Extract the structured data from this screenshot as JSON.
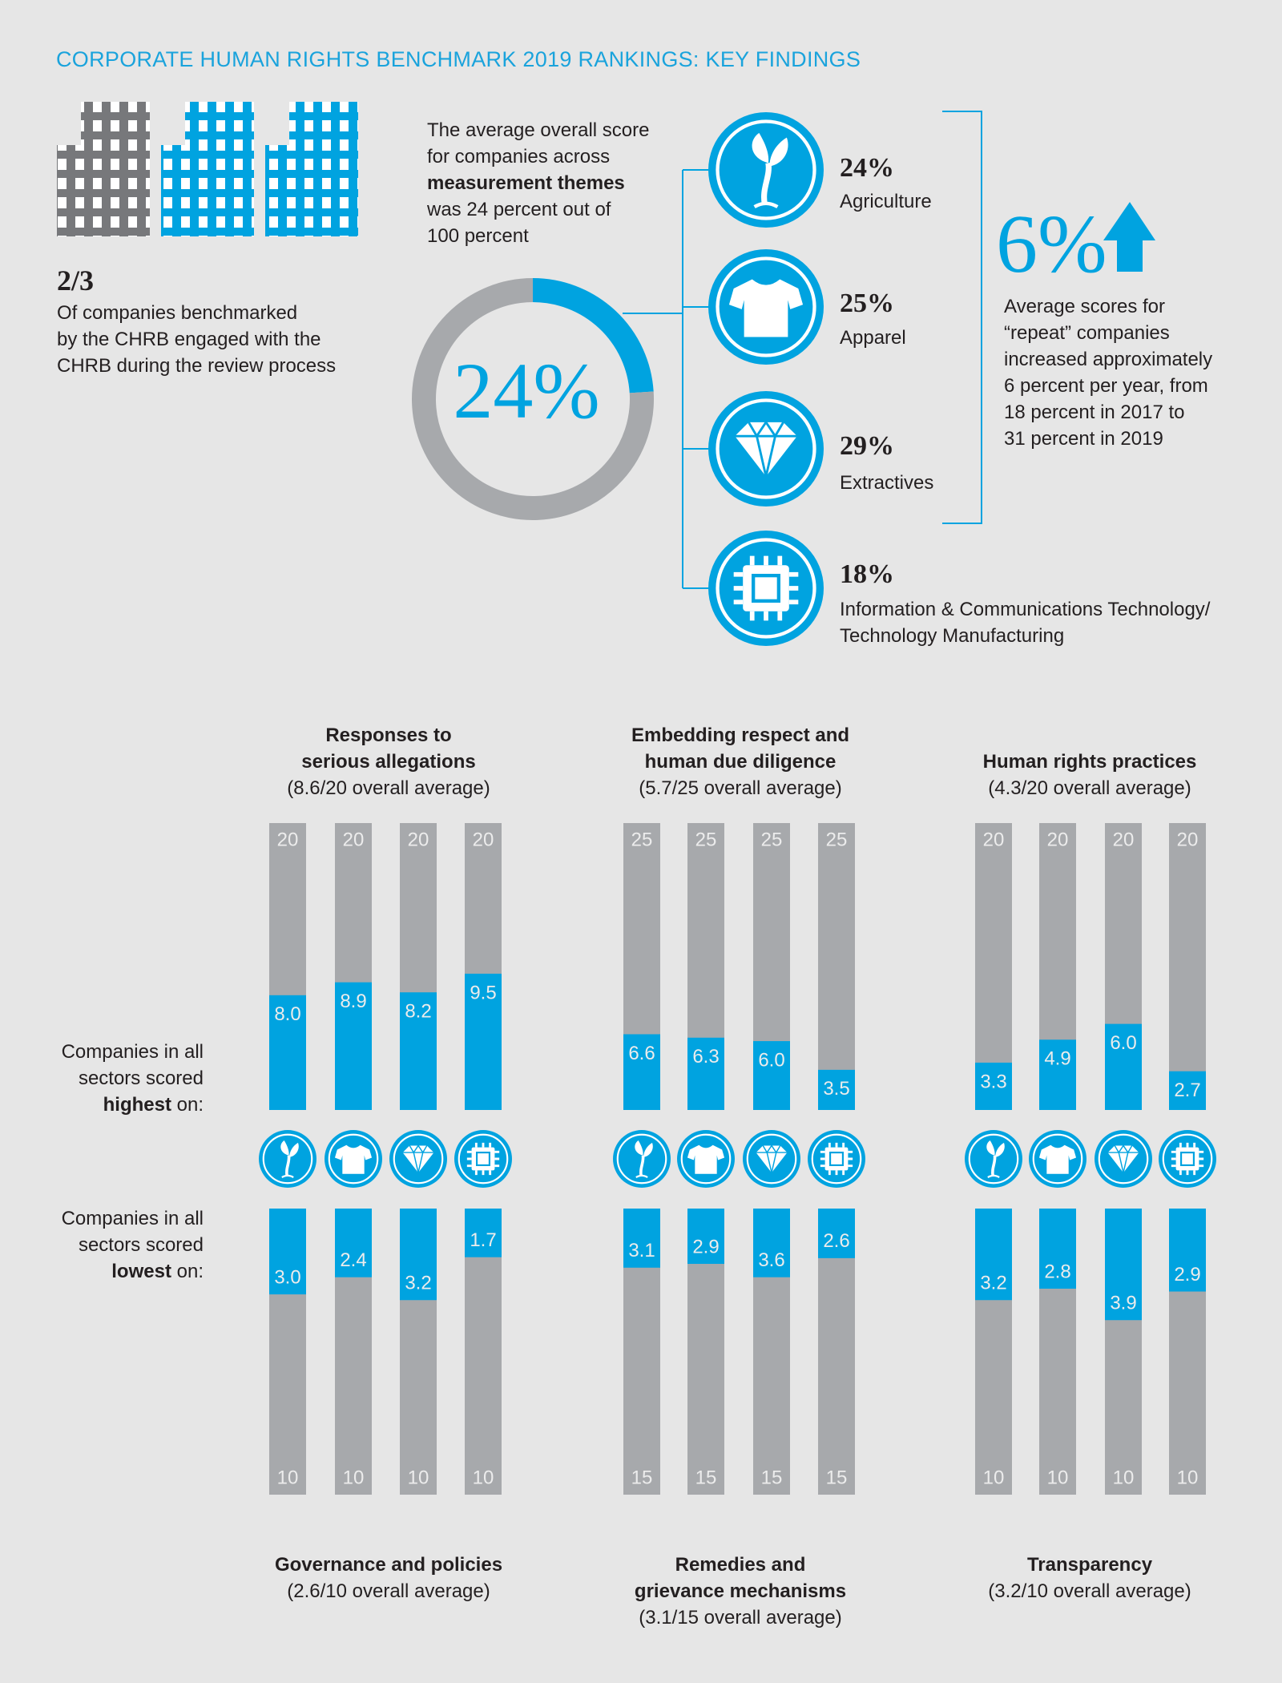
{
  "title": "CORPORATE HUMAN RIGHTS BENCHMARK 2019 RANKINGS: KEY FINDINGS",
  "engagement": {
    "figure": "2/3",
    "text": "Of companies benchmarked\nby the CHRB engaged with the\nCHRB during the review process"
  },
  "overall": {
    "before": "The average overall score\nfor companies across",
    "emphasis": "measurement themes",
    "after": "was 24 percent out of\n100 percent"
  },
  "sectors": [
    {
      "score": "24%",
      "name": "Agriculture"
    },
    {
      "score": "25%",
      "name": "Apparel"
    },
    {
      "score": "29%",
      "name": "Extractives"
    },
    {
      "score": "18%",
      "name": "Information & Communications Technology/\nTechnology Manufacturing"
    }
  ],
  "growth": {
    "figure": "6%",
    "text": "Average scores for\n“repeat” companies\nincreased approximately\n6 percent per year, from\n18 percent in 2017 to\n31 percent in 2019"
  },
  "row_labels": [
    {
      "before": "Companies in all\nsectors scored",
      "emphasis": "highest",
      "after": "on:"
    },
    {
      "before": "Companies in all\nsectors scored",
      "emphasis": "lowest",
      "after": "on:"
    }
  ],
  "chart_data": [
    {
      "type": "donut",
      "values": [
        24,
        76
      ],
      "value_labels": [
        "24%",
        null
      ],
      "colors": [
        "#00a3e0",
        "#a7a9ac"
      ]
    },
    {
      "type": "bar",
      "title": "Responses to\nserious allegations",
      "subtitle": "(8.6/20 overall average)",
      "direction": "up",
      "ylim": [
        0,
        20
      ],
      "totals": [
        20,
        20,
        20,
        20
      ],
      "values": [
        8.0,
        8.9,
        8.2,
        9.5
      ],
      "value_labels": [
        "8.0",
        "8.9",
        "8.2",
        "9.5"
      ],
      "color": "#00a3e0",
      "track_color": "#a7a9ac"
    },
    {
      "type": "bar",
      "title": "Embedding respect and\nhuman due diligence",
      "subtitle": "(5.7/25 overall average)",
      "direction": "up",
      "ylim": [
        0,
        25
      ],
      "totals": [
        25,
        25,
        25,
        25
      ],
      "values": [
        6.6,
        6.3,
        6.0,
        3.5
      ],
      "value_labels": [
        "6.6",
        "6.3",
        "6.0",
        "3.5"
      ],
      "color": "#00a3e0",
      "track_color": "#a7a9ac"
    },
    {
      "type": "bar",
      "title": "Human rights practices",
      "subtitle": "(4.3/20 overall average)",
      "direction": "up",
      "ylim": [
        0,
        20
      ],
      "totals": [
        20,
        20,
        20,
        20
      ],
      "values": [
        3.3,
        4.9,
        6.0,
        2.7
      ],
      "value_labels": [
        "3.3",
        "4.9",
        "6.0",
        "2.7"
      ],
      "color": "#00a3e0",
      "track_color": "#a7a9ac"
    },
    {
      "type": "bar",
      "title": "Governance and policies",
      "subtitle": "(2.6/10 overall average)",
      "direction": "down",
      "ylim": [
        0,
        10
      ],
      "totals": [
        10,
        10,
        10,
        10
      ],
      "values": [
        3.0,
        2.4,
        3.2,
        1.7
      ],
      "value_labels": [
        "3.0",
        "2.4",
        "3.2",
        "1.7"
      ],
      "color": "#00a3e0",
      "track_color": "#a7a9ac"
    },
    {
      "type": "bar",
      "title": "Remedies and\ngrievance mechanisms",
      "subtitle": "(3.1/15 overall average)",
      "direction": "down",
      "ylim": [
        0,
        15
      ],
      "totals": [
        15,
        15,
        15,
        15
      ],
      "values": [
        3.1,
        2.9,
        3.6,
        2.6
      ],
      "value_labels": [
        "3.1",
        "2.9",
        "3.6",
        "2.6"
      ],
      "color": "#00a3e0",
      "track_color": "#a7a9ac"
    },
    {
      "type": "bar",
      "title": "Transparency",
      "subtitle": "(3.2/10 overall average)",
      "direction": "down",
      "ylim": [
        0,
        10
      ],
      "totals": [
        10,
        10,
        10,
        10
      ],
      "values": [
        3.2,
        2.8,
        3.9,
        2.9
      ],
      "value_labels": [
        "3.2",
        "2.8",
        "3.9",
        "2.9"
      ],
      "color": "#00a3e0",
      "track_color": "#a7a9ac"
    }
  ]
}
